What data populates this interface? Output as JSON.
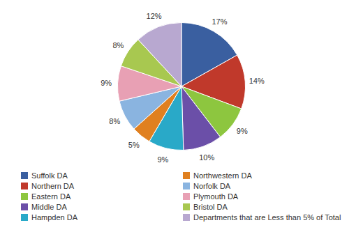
{
  "chart_data": {
    "type": "pie",
    "categories": [
      "Suffolk DA",
      "Northern DA",
      "Eastern DA",
      "Middle DA",
      "Hampden DA",
      "Northwestern DA",
      "Norfolk DA",
      "Plymouth DA",
      "Bristol DA",
      "Departments that are Less than 5% of Total"
    ],
    "values": [
      17,
      14,
      9,
      10,
      9,
      5,
      8,
      9,
      8,
      12
    ],
    "value_labels": [
      "17%",
      "14%",
      "9%",
      "10%",
      "9%",
      "5%",
      "8%",
      "9%",
      "8%",
      "12%"
    ],
    "colors": [
      "#3a5fa0",
      "#c0392b",
      "#8dc63f",
      "#6b4fa8",
      "#29a9c8",
      "#e08020",
      "#8ab4e0",
      "#e8a0b4",
      "#a8c850",
      "#b8a8d0"
    ],
    "data_labels": true,
    "legend": "bottom"
  }
}
